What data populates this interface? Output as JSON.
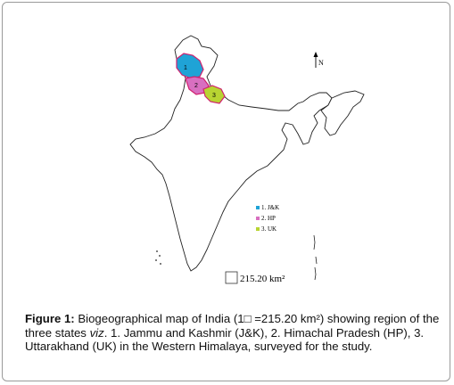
{
  "map": {
    "legend": [
      {
        "label": "1. J&K",
        "color": "#1fa3d6"
      },
      {
        "label": "2. HP",
        "color": "#d86fc0"
      },
      {
        "label": "3. UK",
        "color": "#b8d432"
      }
    ],
    "regions": [
      {
        "number": "1",
        "name": "Jammu and Kashmir",
        "color": "#1fa3d6"
      },
      {
        "number": "2",
        "name": "Himachal Pradesh",
        "color": "#d86fc0"
      },
      {
        "number": "3",
        "name": "Uttarakhand",
        "color": "#b8d432"
      }
    ],
    "north_label": "N",
    "scale_label": "215.20 km²"
  },
  "caption": {
    "label": "Figure 1:",
    "part1": " Biogeographical map of India (1",
    "symbol": "□",
    "part2": " =215.20 km²) showing region of the three states ",
    "viz": "viz",
    "part3": ". 1. Jammu and Kashmir (J&K), 2. Himachal Pradesh (HP), 3. Uttarakhand (UK) in the Western Himalaya, surveyed for the study."
  }
}
